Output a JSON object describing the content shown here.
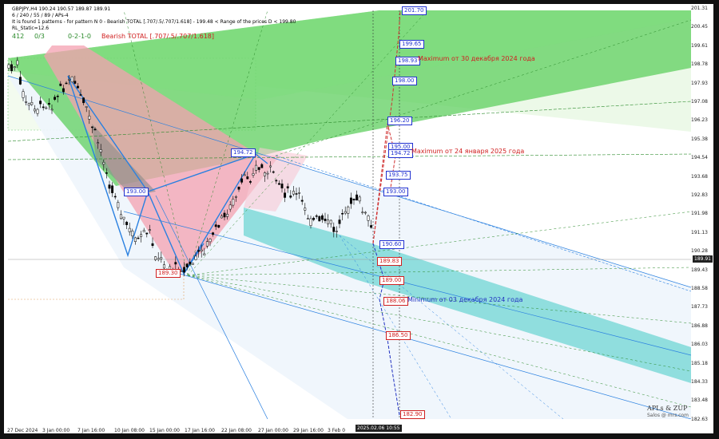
{
  "header": {
    "line1": "GBPJPY,H4  190.24 190.57 189.87 189.91",
    "line2": "6 / 240 / 55 / 89 / APs-4",
    "line3": "It is found 1 patterns -  for pattern N 0 - Bearish TOTAL [.707/.5/.707/1.618] - 199.48 < Range of the prices D < 199.80",
    "line4": "RL_Static=12.6",
    "stats": [
      "412",
      "0/3",
      "0-2-1-0"
    ],
    "pattern_label": "Bearish TOTAL [.707/.5/.707/1.618]"
  },
  "price_axis": {
    "ticks": [
      "201.31",
      "200.45",
      "199.61",
      "198.78",
      "197.93",
      "197.08",
      "196.23",
      "195.38",
      "194.54",
      "193.68",
      "192.83",
      "191.98",
      "191.13",
      "190.28",
      "189.43",
      "188.58",
      "187.73",
      "186.88",
      "186.03",
      "185.18",
      "184.33",
      "183.48",
      "182.63"
    ],
    "current": "189.91"
  },
  "time_axis": {
    "ticks": [
      "27 Dec 2024",
      "3 Jan 00:00",
      "7 Jan 16:00",
      "10 Jan 08:00",
      "15 Jan 00:00",
      "17 Jan 16:00",
      "22 Jan 08:00",
      "27 Jan 00:00",
      "29 Jan 16:00",
      "3 Feb 0"
    ],
    "current": "2025.02.06 10:55"
  },
  "price_labels": [
    {
      "text": "201.70",
      "color": "blue"
    },
    {
      "text": "199.65",
      "color": "blue"
    },
    {
      "text": "198.93",
      "color": "blue"
    },
    {
      "text": "198.00",
      "color": "blue"
    },
    {
      "text": "196.20",
      "color": "blue"
    },
    {
      "text": "195.00",
      "color": "blue"
    },
    {
      "text": "194.72",
      "color": "blue"
    },
    {
      "text": "193.75",
      "color": "blue"
    },
    {
      "text": "193.00",
      "color": "blue"
    },
    {
      "text": "190.60",
      "color": "blue"
    },
    {
      "text": "189.83",
      "color": "red"
    },
    {
      "text": "189.00",
      "color": "red"
    },
    {
      "text": "188.06",
      "color": "red"
    },
    {
      "text": "186.50",
      "color": "red"
    },
    {
      "text": "182.90",
      "color": "red"
    },
    {
      "text": "194.72",
      "color": "blue"
    },
    {
      "text": "193.00",
      "color": "blue"
    },
    {
      "text": "189.30",
      "color": "red"
    }
  ],
  "annotations": {
    "max_dec": "Maximum от 30 декабря 2024 года",
    "max_jan": "Maximum от 24 января 2025 года",
    "min_dec": "Minimum от 03 декабря 2024 года"
  },
  "watermark": {
    "line1": "APLs & ZUP",
    "line2": "Salos @ mrs.com"
  },
  "colors": {
    "green_channel": "#5fcf5f",
    "pink_channel": "#f4a0b0",
    "cyan_channel": "#7fd9d8",
    "blue_line": "#2a80e0",
    "red_path": "#d03030",
    "navy_path": "#2030c0"
  }
}
